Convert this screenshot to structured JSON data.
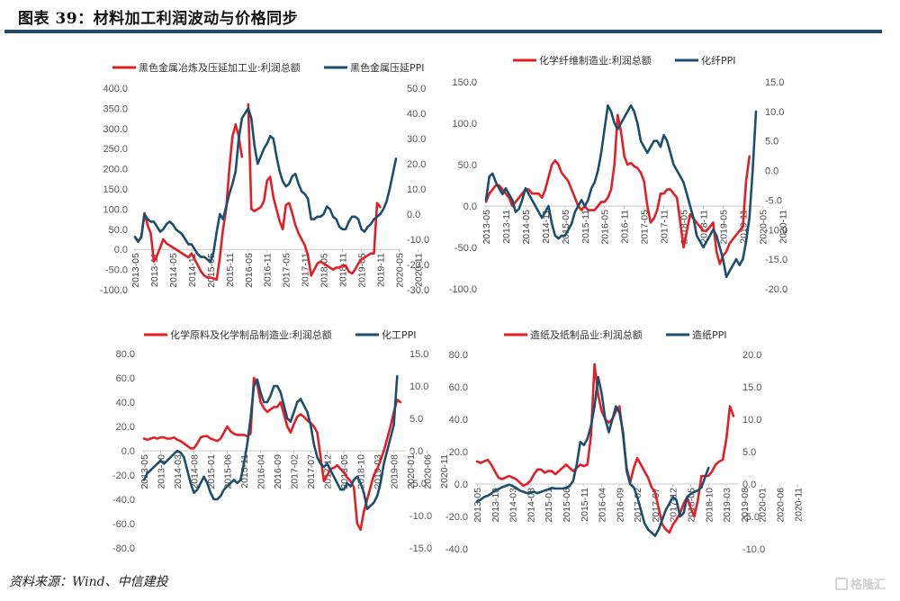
{
  "figure": {
    "title": "图表 39：材料加工利润波动与价格同步",
    "source": "资料来源：Wind、中信建投",
    "watermark": "格隆汇",
    "colors": {
      "profit": "#e01f26",
      "ppi": "#1c4f6e",
      "rule": "#1f4e6b",
      "axis": "#c8c8c8"
    }
  },
  "chart_data": [
    {
      "type": "line",
      "title": "",
      "legend_position": "top",
      "xlabel": "",
      "ylabel": "",
      "x_start": "2013-05",
      "x_tick_labels": [
        "2013-05",
        "2013-11",
        "2014-05",
        "2014-11",
        "2015-05",
        "2015-11",
        "2016-05",
        "2016-11",
        "2017-05",
        "2017-11",
        "2018-05",
        "2018-11",
        "2019-05",
        "2019-11",
        "2020-05",
        "2020-11"
      ],
      "x_tick_step_months": 6,
      "y_left": {
        "range": [
          -100,
          400
        ],
        "step": 50,
        "labels": [
          "400.0",
          "350.0",
          "300.0",
          "250.0",
          "200.0",
          "150.0",
          "100.0",
          "50.0",
          "0.0",
          "-50.0",
          "-100.0"
        ]
      },
      "y_right": {
        "range": [
          -30,
          50
        ],
        "step": 10,
        "labels": [
          "50.0",
          "40.0",
          "30.0",
          "20.0",
          "10.0",
          "0.0",
          "-10.0",
          "-20.0",
          "-30.0"
        ]
      },
      "series": [
        {
          "name": "黑色金属冶炼及压延加工业:利润总额",
          "axis": "left",
          "color": "profit",
          "values": [
            30,
            20,
            30,
            90,
            60,
            40,
            -30,
            -15,
            5,
            25,
            15,
            10,
            5,
            0,
            -5,
            -10,
            -15,
            -20,
            -10,
            -25,
            -40,
            -55,
            -65,
            -70,
            -70,
            -72,
            -75,
            -20,
            50,
            100,
            200,
            280,
            310,
            280,
            230,
            null,
            360,
            100,
            95,
            100,
            105,
            120,
            170,
            180,
            130,
            100,
            70,
            50,
            110,
            115,
            90,
            60,
            40,
            25,
            10,
            -15,
            -65,
            -50,
            -35,
            -30,
            -35,
            -40,
            -45,
            -50,
            -45,
            -45,
            -40,
            -40,
            -55,
            -60,
            -50,
            -35,
            -25,
            -20,
            -15,
            -10,
            -10,
            115,
            105
          ]
        },
        {
          "name": "黑色金属压延PPI",
          "axis": "right",
          "color": "ppi",
          "values": [
            -9,
            -11,
            -9,
            0,
            -2,
            -3,
            -3,
            -5,
            -7,
            -6,
            -4,
            -3,
            -4,
            -6,
            -7,
            -8,
            -10,
            -12,
            -12,
            -14,
            -16,
            -17,
            -17,
            -18,
            -19,
            -15,
            -7,
            0,
            -2,
            3,
            8,
            12,
            17,
            30,
            38,
            40,
            42,
            38,
            27,
            20,
            23,
            26,
            28,
            31,
            30,
            23,
            17,
            13,
            11,
            12,
            15,
            16,
            12,
            9,
            8,
            6,
            -2,
            -2,
            -1,
            -1,
            0,
            3,
            2,
            -1,
            -2,
            -5,
            -6,
            -6,
            -3,
            -1,
            -1,
            -2,
            -6,
            -7,
            -5,
            -4,
            -2,
            -1,
            0,
            2,
            5,
            10,
            16,
            22
          ]
        }
      ]
    },
    {
      "type": "line",
      "title": "",
      "legend_position": "top",
      "xlabel": "",
      "ylabel": "",
      "x_start": "2013-05",
      "x_tick_labels": [
        "2013-05",
        "2013-11",
        "2014-05",
        "2014-11",
        "2015-05",
        "2015-11",
        "2016-05",
        "2016-11",
        "2017-05",
        "2017-11",
        "2018-05",
        "2018-11",
        "2019-05",
        "2019-11",
        "2020-05",
        "2020-11"
      ],
      "x_tick_step_months": 6,
      "y_left": {
        "range": [
          -100,
          150
        ],
        "step": 50,
        "labels": [
          "150.0",
          "100.0",
          "50.0",
          "0.0",
          "-50.0",
          "-100.0"
        ]
      },
      "y_right": {
        "range": [
          -20,
          15
        ],
        "step": 5,
        "labels": [
          "15.0",
          "10.0",
          "5.0",
          "0.0",
          "-5.0",
          "-10.0",
          "-15.0",
          "-20.0"
        ]
      },
      "series": [
        {
          "name": "化学纤维制造业:利润总额",
          "axis": "left",
          "color": "profit",
          "values": [
            5,
            15,
            20,
            25,
            25,
            20,
            15,
            10,
            0,
            5,
            10,
            15,
            20,
            20,
            15,
            15,
            15,
            10,
            20,
            35,
            50,
            55,
            50,
            40,
            35,
            30,
            20,
            10,
            0,
            -5,
            0,
            -5,
            -5,
            -5,
            0,
            5,
            5,
            10,
            20,
            50,
            110,
            90,
            60,
            50,
            52,
            48,
            46,
            40,
            30,
            0,
            -20,
            -15,
            -5,
            15,
            15,
            20,
            20,
            15,
            10,
            -20,
            -50,
            -30,
            -10,
            -15,
            -20,
            -25,
            -30,
            -30,
            -25,
            -20,
            -55,
            -70,
            -60,
            -55,
            -45,
            -40,
            -35,
            -30,
            -25,
            30,
            60
          ]
        },
        {
          "name": "化纤PPI",
          "axis": "right",
          "color": "ppi",
          "values": [
            -5,
            -1,
            -0.5,
            -2,
            -3,
            -4,
            -3,
            -4,
            -5,
            -7,
            -6.5,
            -5,
            -3,
            -4,
            -5,
            -6,
            -7,
            -8,
            -7,
            -6,
            -9,
            -11,
            -11.5,
            -11,
            -11,
            -10,
            -9,
            -7,
            -6,
            -5,
            -6,
            -5,
            -3,
            -2,
            0,
            3,
            7,
            11,
            10,
            8,
            7,
            8,
            9,
            10,
            11,
            10,
            8,
            5,
            4,
            3,
            4,
            5,
            5,
            4,
            6,
            5,
            3,
            1,
            0,
            -1,
            -2,
            -4,
            -6,
            -8,
            -11,
            -12,
            -13,
            -12,
            -11,
            -10,
            -11,
            -13,
            -15,
            -18,
            -17,
            -16,
            -15,
            -16,
            -15,
            -12,
            -8,
            0,
            10
          ]
        }
      ]
    },
    {
      "type": "line",
      "title": "",
      "legend_position": "top",
      "xlabel": "",
      "ylabel": "",
      "x_start": "2013-05",
      "x_tick_labels": [
        "2013-05",
        "2013-10",
        "2014-03",
        "2014-08",
        "2015-01",
        "2015-06",
        "2015-11",
        "2016-04",
        "2016-09",
        "2017-02",
        "2017-07",
        "2017-12",
        "2018-05",
        "2018-10",
        "2019-03",
        "2019-08",
        "2020-01",
        "2020-06",
        "2020-11"
      ],
      "x_tick_step_months": 5,
      "y_left": {
        "range": [
          -80,
          80
        ],
        "step": 20,
        "labels": [
          "80.0",
          "60.0",
          "40.0",
          "20.0",
          "0.0",
          "-20.0",
          "-40.0",
          "-60.0",
          "-80.0"
        ]
      },
      "y_right": {
        "range": [
          -15,
          15
        ],
        "step": 5,
        "labels": [
          "15.0",
          "10.0",
          "5.0",
          "0.0",
          "-5.0",
          "-10.0",
          "-15.0"
        ]
      },
      "series": [
        {
          "name": "化学原料及化学制品制造业:利润总额",
          "axis": "left",
          "color": "profit",
          "values": [
            10,
            9,
            10,
            11,
            10,
            11,
            11,
            10,
            10,
            11,
            9,
            8,
            6,
            4,
            2,
            2,
            6,
            11,
            12,
            12,
            10,
            9,
            8,
            10,
            15,
            20,
            16,
            14,
            13,
            13,
            13,
            12,
            14,
            60,
            55,
            40,
            35,
            32,
            34,
            36,
            36,
            40,
            30,
            20,
            15,
            22,
            28,
            30,
            28,
            25,
            23,
            20,
            15,
            -5,
            -25,
            -20,
            -15,
            -14,
            -12,
            -15,
            -18,
            -22,
            -25,
            -30,
            -60,
            -65,
            -50,
            -40,
            -30,
            -20,
            -15,
            -8,
            0,
            10,
            20,
            32,
            42,
            40
          ]
        },
        {
          "name": "化工PPI",
          "axis": "right",
          "color": "ppi",
          "values": [
            -4.5,
            -3.5,
            -3,
            -2.5,
            -2,
            -1.5,
            -2,
            -1.5,
            -1,
            -0.5,
            0,
            -0.3,
            -1,
            -3,
            -5,
            -6.5,
            -6,
            -5,
            -4,
            -5,
            -6.5,
            -7.5,
            -7.5,
            -7,
            -6,
            -5.5,
            -5,
            -4.5,
            -5,
            -4.5,
            -2,
            1,
            5,
            10,
            11,
            9,
            7.5,
            7.5,
            8.5,
            10,
            10,
            9,
            7,
            5,
            4.5,
            6,
            7.5,
            8,
            7,
            6,
            4,
            1,
            -1,
            -2,
            -2.5,
            -2,
            -3,
            -4,
            -5,
            -6,
            -6,
            -5,
            -5.5,
            -4.5,
            -4,
            -5,
            -6.5,
            -9,
            -8.5,
            -8,
            -7,
            -5,
            -2,
            0,
            2,
            4,
            11.5
          ]
        }
      ]
    },
    {
      "type": "line",
      "title": "",
      "legend_position": "top",
      "xlabel": "",
      "ylabel": "",
      "x_start": "2013-05",
      "x_tick_labels": [
        "2013-05",
        "2013-10",
        "2014-03",
        "2014-08",
        "2015-01",
        "2015-06",
        "2015-11",
        "2016-04",
        "2016-09",
        "2017-02",
        "2017-07",
        "2017-12",
        "2018-05",
        "2018-10",
        "2019-03",
        "2019-08",
        "2020-01",
        "2020-06",
        "2020-11"
      ],
      "x_tick_step_months": 5,
      "y_left": {
        "range": [
          -40,
          80
        ],
        "step": 20,
        "labels": [
          "80.0",
          "60.0",
          "40.0",
          "20.0",
          "0.0",
          "-20.0",
          "-40.0"
        ]
      },
      "y_right": {
        "range": [
          -10,
          20
        ],
        "step": 5,
        "labels": [
          "20.0",
          "15.0",
          "10.0",
          "5.0",
          "0.0",
          "-5.0",
          "-10.0"
        ]
      },
      "series": [
        {
          "name": "造纸及纸制品业:利润总额",
          "axis": "left",
          "color": "profit",
          "values": [
            14,
            13,
            14,
            15,
            12,
            8,
            4,
            3,
            4,
            5,
            4,
            3,
            1,
            -1,
            0,
            2,
            6,
            9,
            9,
            7,
            8,
            8,
            6,
            8,
            10,
            12,
            10,
            8,
            10,
            12,
            11,
            12,
            30,
            74,
            55,
            45,
            40,
            38,
            40,
            45,
            48,
            30,
            10,
            1,
            10,
            16,
            12,
            8,
            4,
            -2,
            -5,
            -15,
            -25,
            -28,
            -30,
            -25,
            -22,
            -18,
            -12,
            -8,
            -15,
            -20,
            -10,
            5,
            5,
            5,
            8,
            12,
            14,
            15,
            28,
            48,
            42
          ]
        },
        {
          "name": "造纸PPI",
          "axis": "right",
          "color": "ppi",
          "values": [
            -2.7,
            -2.4,
            -2,
            -1.8,
            -1.5,
            -1,
            -0.8,
            -0.5,
            -0.3,
            -0.1,
            -0.3,
            -0.6,
            -1,
            -1.2,
            -1.4,
            -1.3,
            -1.2,
            -1.4,
            -1.2,
            -1,
            -0.8,
            -0.6,
            -0.7,
            -0.7,
            -0.7,
            -0.6,
            -0.3,
            0.5,
            3,
            6.5,
            6,
            7,
            9,
            12,
            16.5,
            14,
            10,
            8,
            10,
            12,
            11,
            8,
            2,
            0,
            -0.5,
            -2,
            -4,
            -6,
            -7,
            -7.5,
            -8,
            -7,
            -5.5,
            -4,
            -3,
            -2,
            -2.5,
            -5,
            -4.5,
            -2,
            -1.5,
            -1.2,
            -1,
            -0.5,
            1,
            2.5
          ]
        }
      ]
    }
  ]
}
